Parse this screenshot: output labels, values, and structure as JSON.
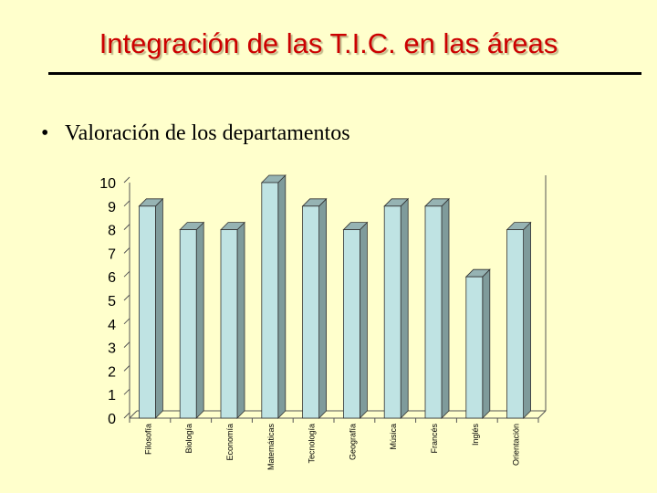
{
  "slide": {
    "title": "Integración de las T.I.C. en las áreas",
    "bullet": "Valoración de los departamentos"
  },
  "colors": {
    "background": "#ffffcc",
    "title": "#cc0000",
    "bar_front": "#bfe3e3",
    "bar_side": "#7f9b9b",
    "bar_top": "#96b3b3"
  },
  "chart_data": {
    "type": "bar",
    "categories": [
      "Filosofía",
      "Biología",
      "Economía",
      "Matemáticas",
      "Tecnología",
      "Geografía",
      "Música",
      "Francés",
      "Inglés",
      "Orientación"
    ],
    "values": [
      9,
      8,
      8,
      10,
      9,
      8,
      9,
      9,
      6,
      8
    ],
    "ylim": [
      0,
      10
    ],
    "yticks": [
      "0",
      "1",
      "2",
      "3",
      "4",
      "5",
      "6",
      "7",
      "8",
      "9",
      "10"
    ],
    "grid": false,
    "three_d": true,
    "title": "",
    "xlabel": "",
    "ylabel": ""
  }
}
